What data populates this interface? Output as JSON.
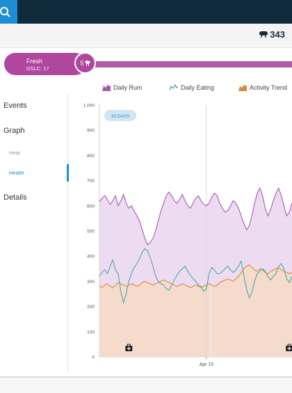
{
  "header": {
    "animal_count": "343",
    "animal_icon": "cow-icon",
    "search_icon": "search-icon"
  },
  "stage": {
    "name": "Fresh",
    "dslc": "DSLC: 17",
    "lactation": "5"
  },
  "nav": {
    "events": "Events",
    "graph": "Graph",
    "heat": "Heat",
    "health": "Health",
    "details": "Details"
  },
  "legend": [
    {
      "label": "Daily Rum",
      "color": "#a45bb1"
    },
    {
      "label": "Daily Eating",
      "color": "#4aa7b0"
    },
    {
      "label": "Activity Trend",
      "color": "#d88a3a"
    }
  ],
  "chart_data": {
    "type": "area",
    "range_chip": "30 DAYS",
    "xlabel": "",
    "ylabel": "",
    "ylim": [
      0,
      1000
    ],
    "yticks": [
      "0",
      "100",
      "200",
      "300",
      "400",
      "500",
      "600",
      "700",
      "800",
      "900",
      "1,000"
    ],
    "x_tick": {
      "label": "Apr 15",
      "index": 40
    },
    "grid": false,
    "series": [
      {
        "name": "Daily Rum",
        "color": "#a45bb1",
        "fill": "#ead6ee",
        "values": [
          615,
          630,
          640,
          625,
          605,
          620,
          640,
          600,
          620,
          645,
          610,
          590,
          600,
          580,
          560,
          540,
          505,
          470,
          445,
          455,
          470,
          500,
          540,
          580,
          610,
          640,
          655,
          640,
          620,
          610,
          625,
          645,
          620,
          600,
          590,
          610,
          630,
          640,
          620,
          605,
          600,
          610,
          635,
          650,
          640,
          610,
          590,
          575,
          580,
          600,
          620,
          610,
          590,
          560,
          530,
          505,
          520,
          560,
          610,
          650,
          670,
          640,
          590,
          560,
          585,
          620,
          650,
          670,
          640,
          600,
          560,
          575,
          610
        ]
      },
      {
        "name": "Daily Eating",
        "color": "#4aa7b0",
        "fill": "none",
        "values": [
          320,
          335,
          345,
          330,
          360,
          385,
          345,
          330,
          260,
          215,
          250,
          300,
          330,
          355,
          370,
          390,
          415,
          430,
          420,
          395,
          360,
          320,
          300,
          290,
          285,
          270,
          265,
          285,
          305,
          325,
          340,
          350,
          360,
          340,
          325,
          310,
          300,
          285,
          280,
          260,
          270,
          330,
          355,
          345,
          330,
          330,
          340,
          350,
          360,
          345,
          335,
          345,
          360,
          380,
          320,
          270,
          235,
          255,
          300,
          330,
          340,
          350,
          340,
          320,
          305,
          320,
          330,
          360,
          370,
          350,
          310,
          295,
          320
        ]
      },
      {
        "name": "Activity Trend",
        "color": "#d88a3a",
        "fill": "#f4dac5",
        "values": [
          280,
          275,
          285,
          290,
          280,
          275,
          285,
          295,
          290,
          285,
          280,
          285,
          290,
          285,
          280,
          285,
          295,
          300,
          295,
          290,
          285,
          290,
          295,
          300,
          305,
          300,
          295,
          290,
          285,
          280,
          285,
          290,
          285,
          280,
          275,
          280,
          285,
          280,
          275,
          280,
          285,
          290,
          285,
          280,
          285,
          295,
          300,
          305,
          310,
          305,
          300,
          310,
          320,
          335,
          350,
          360,
          365,
          355,
          345,
          340,
          350,
          345,
          335,
          330,
          340,
          345,
          350,
          355,
          345,
          340,
          335,
          330,
          335
        ]
      }
    ],
    "events": [
      {
        "index": 11,
        "icon": "health-event-icon"
      },
      {
        "index": 71,
        "icon": "calendar-event-icon"
      }
    ]
  }
}
